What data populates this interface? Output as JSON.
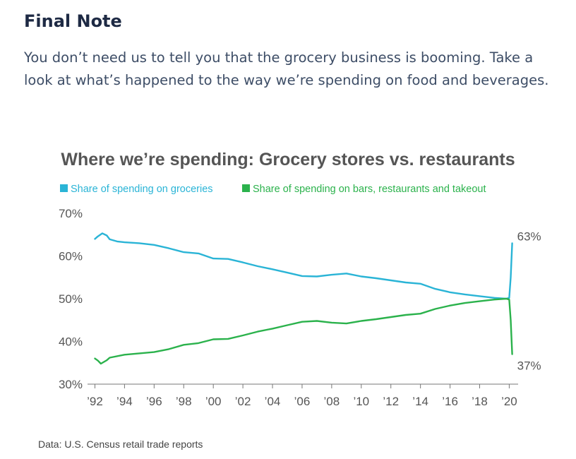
{
  "article": {
    "heading": "Final Note",
    "intro": "You don’t need us to tell you that the grocery business is booming. Take a look at what’s happened to the way we’re spending on food and beverages."
  },
  "source_note": "Data: U.S. Census retail trade reports",
  "colors": {
    "groceries": "#2ab4d6",
    "restaurants": "#2bb24c",
    "axis_text": "#555555",
    "title": "#555555"
  },
  "chart_data": {
    "type": "line",
    "title": "Where we’re spending: Grocery stores vs. restaurants",
    "xlabel": "",
    "ylabel": "",
    "xlim": [
      1991.5,
      2020.6
    ],
    "ylim": [
      30,
      70
    ],
    "y_ticks": [
      30,
      40,
      50,
      60,
      70
    ],
    "y_tick_labels": [
      "30%",
      "40%",
      "50%",
      "60%",
      "70%"
    ],
    "x_ticks": [
      1992,
      1994,
      1996,
      1998,
      2000,
      2002,
      2004,
      2006,
      2008,
      2010,
      2012,
      2014,
      2016,
      2018,
      2020
    ],
    "x_tick_labels": [
      "’92",
      "’94",
      "’96",
      "’98",
      "’00",
      "’02",
      "’04",
      "’06",
      "’08",
      "’10",
      "’12",
      "’14",
      "’16",
      "’18",
      "’20"
    ],
    "grid": false,
    "legend_position": "top-left",
    "series": [
      {
        "name": "Share of spending on groceries",
        "color": "#2ab4d6",
        "points": [
          [
            1992,
            64.0
          ],
          [
            1992.2,
            64.6
          ],
          [
            1992.5,
            65.3
          ],
          [
            1992.8,
            64.8
          ],
          [
            1993,
            63.9
          ],
          [
            1993.5,
            63.4
          ],
          [
            1994,
            63.2
          ],
          [
            1995,
            63.0
          ],
          [
            1996,
            62.6
          ],
          [
            1997,
            61.8
          ],
          [
            1998,
            60.9
          ],
          [
            1999,
            60.6
          ],
          [
            2000,
            59.4
          ],
          [
            2001,
            59.3
          ],
          [
            2002,
            58.5
          ],
          [
            2003,
            57.6
          ],
          [
            2004,
            56.9
          ],
          [
            2005,
            56.1
          ],
          [
            2006,
            55.3
          ],
          [
            2007,
            55.2
          ],
          [
            2008,
            55.6
          ],
          [
            2009,
            55.9
          ],
          [
            2010,
            55.2
          ],
          [
            2011,
            54.8
          ],
          [
            2012,
            54.3
          ],
          [
            2013,
            53.8
          ],
          [
            2014,
            53.5
          ],
          [
            2015,
            52.3
          ],
          [
            2016,
            51.5
          ],
          [
            2017,
            51.0
          ],
          [
            2018,
            50.6
          ],
          [
            2019,
            50.2
          ],
          [
            2019.8,
            50.0
          ],
          [
            2020.0,
            50.2
          ],
          [
            2020.1,
            55.0
          ],
          [
            2020.2,
            63.0
          ]
        ],
        "end_label": "63%"
      },
      {
        "name": "Share of spending on bars, restaurants and takeout",
        "color": "#2bb24c",
        "points": [
          [
            1992,
            36.0
          ],
          [
            1992.2,
            35.5
          ],
          [
            1992.4,
            34.8
          ],
          [
            1992.8,
            35.6
          ],
          [
            1993,
            36.2
          ],
          [
            1994,
            36.9
          ],
          [
            1995,
            37.2
          ],
          [
            1996,
            37.5
          ],
          [
            1997,
            38.2
          ],
          [
            1998,
            39.2
          ],
          [
            1999,
            39.6
          ],
          [
            2000,
            40.5
          ],
          [
            2001,
            40.6
          ],
          [
            2002,
            41.4
          ],
          [
            2003,
            42.3
          ],
          [
            2004,
            43.0
          ],
          [
            2005,
            43.8
          ],
          [
            2006,
            44.6
          ],
          [
            2007,
            44.8
          ],
          [
            2008,
            44.4
          ],
          [
            2009,
            44.2
          ],
          [
            2010,
            44.8
          ],
          [
            2011,
            45.2
          ],
          [
            2012,
            45.7
          ],
          [
            2013,
            46.2
          ],
          [
            2014,
            46.5
          ],
          [
            2015,
            47.6
          ],
          [
            2016,
            48.4
          ],
          [
            2017,
            49.0
          ],
          [
            2018,
            49.4
          ],
          [
            2019,
            49.8
          ],
          [
            2019.8,
            50.0
          ],
          [
            2020.0,
            49.8
          ],
          [
            2020.1,
            45.0
          ],
          [
            2020.2,
            37.0
          ]
        ],
        "end_label": "37%"
      }
    ]
  }
}
